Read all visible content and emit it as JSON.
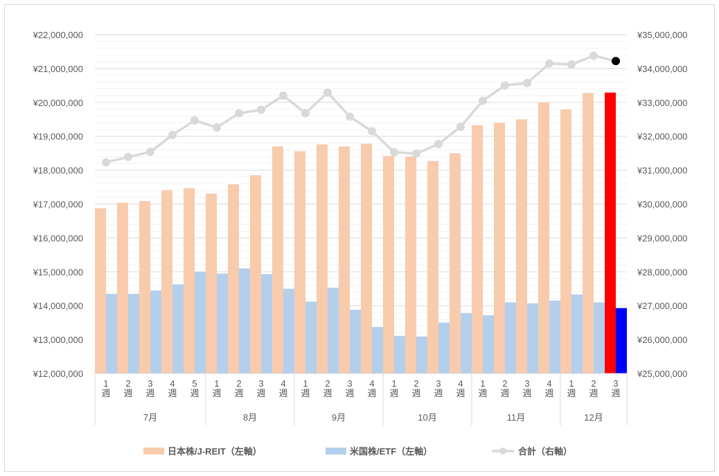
{
  "chart_data": {
    "type": "bar",
    "categories": [
      {
        "week": "1週",
        "month": "7月"
      },
      {
        "week": "2週",
        "month": "7月"
      },
      {
        "week": "3週",
        "month": "7月"
      },
      {
        "week": "4週",
        "month": "7月"
      },
      {
        "week": "5週",
        "month": "7月"
      },
      {
        "week": "1週",
        "month": "8月"
      },
      {
        "week": "2週",
        "month": "8月"
      },
      {
        "week": "3週",
        "month": "8月"
      },
      {
        "week": "4週",
        "month": "8月"
      },
      {
        "week": "1週",
        "month": "9月"
      },
      {
        "week": "2週",
        "month": "9月"
      },
      {
        "week": "3週",
        "month": "9月"
      },
      {
        "week": "4週",
        "month": "9月"
      },
      {
        "week": "1週",
        "month": "10月"
      },
      {
        "week": "2週",
        "month": "10月"
      },
      {
        "week": "3週",
        "month": "10月"
      },
      {
        "week": "4週",
        "month": "10月"
      },
      {
        "week": "1週",
        "month": "11月"
      },
      {
        "week": "2週",
        "month": "11月"
      },
      {
        "week": "3週",
        "month": "11月"
      },
      {
        "week": "4週",
        "month": "11月"
      },
      {
        "week": "1週",
        "month": "12月"
      },
      {
        "week": "2週",
        "month": "12月"
      },
      {
        "week": "3週",
        "month": "12月"
      }
    ],
    "months": [
      "7月",
      "8月",
      "9月",
      "10月",
      "11月",
      "12月"
    ],
    "series": [
      {
        "name": "日本株/J-REIT（左軸）",
        "axis": "left",
        "kind": "bar",
        "color": "#f8cbad",
        "highlight_color": "#ff0000",
        "values": [
          16880000,
          17040000,
          17090000,
          17410000,
          17470000,
          17310000,
          17580000,
          17850000,
          18700000,
          18560000,
          18760000,
          18700000,
          18780000,
          18420000,
          18400000,
          18270000,
          18500000,
          19330000,
          19400000,
          19500000,
          20000000,
          19790000,
          20280000,
          20290000
        ]
      },
      {
        "name": "米国株/ETF（左軸）",
        "axis": "left",
        "kind": "bar",
        "color": "#b4cfec",
        "highlight_color": "#0000ff",
        "values": [
          14350000,
          14350000,
          14450000,
          14630000,
          15000000,
          14950000,
          15100000,
          14930000,
          14500000,
          14120000,
          14530000,
          13880000,
          13370000,
          13110000,
          13090000,
          13500000,
          13780000,
          13720000,
          14100000,
          14070000,
          14150000,
          14330000,
          14100000,
          13930000
        ]
      },
      {
        "name": "合計（右軸）",
        "axis": "right",
        "kind": "line",
        "color": "#d9d9d9",
        "highlight_color": "#000000",
        "values": [
          31230000,
          31390000,
          31540000,
          32040000,
          32470000,
          32260000,
          32680000,
          32780000,
          33200000,
          32680000,
          33290000,
          32580000,
          32150000,
          31530000,
          31490000,
          31770000,
          32280000,
          33050000,
          33500000,
          33570000,
          34150000,
          34120000,
          34380000,
          34220000
        ]
      }
    ],
    "y_left": {
      "min": 12000000,
      "max": 22000000,
      "step": 1000000,
      "minor_step": 200000,
      "tick_labels": [
        "¥12,000,000",
        "¥13,000,000",
        "¥14,000,000",
        "¥15,000,000",
        "¥16,000,000",
        "¥17,000,000",
        "¥18,000,000",
        "¥19,000,000",
        "¥20,000,000",
        "¥21,000,000",
        "¥22,000,000"
      ]
    },
    "y_right": {
      "min": 25000000,
      "max": 35000000,
      "step": 1000000,
      "tick_labels": [
        "¥25,000,000",
        "¥26,000,000",
        "¥27,000,000",
        "¥28,000,000",
        "¥29,000,000",
        "¥30,000,000",
        "¥31,000,000",
        "¥32,000,000",
        "¥33,000,000",
        "¥34,000,000",
        "¥35,000,000"
      ]
    },
    "title": "",
    "grid": true,
    "legend_position": "bottom",
    "highlight_last_point": true
  }
}
